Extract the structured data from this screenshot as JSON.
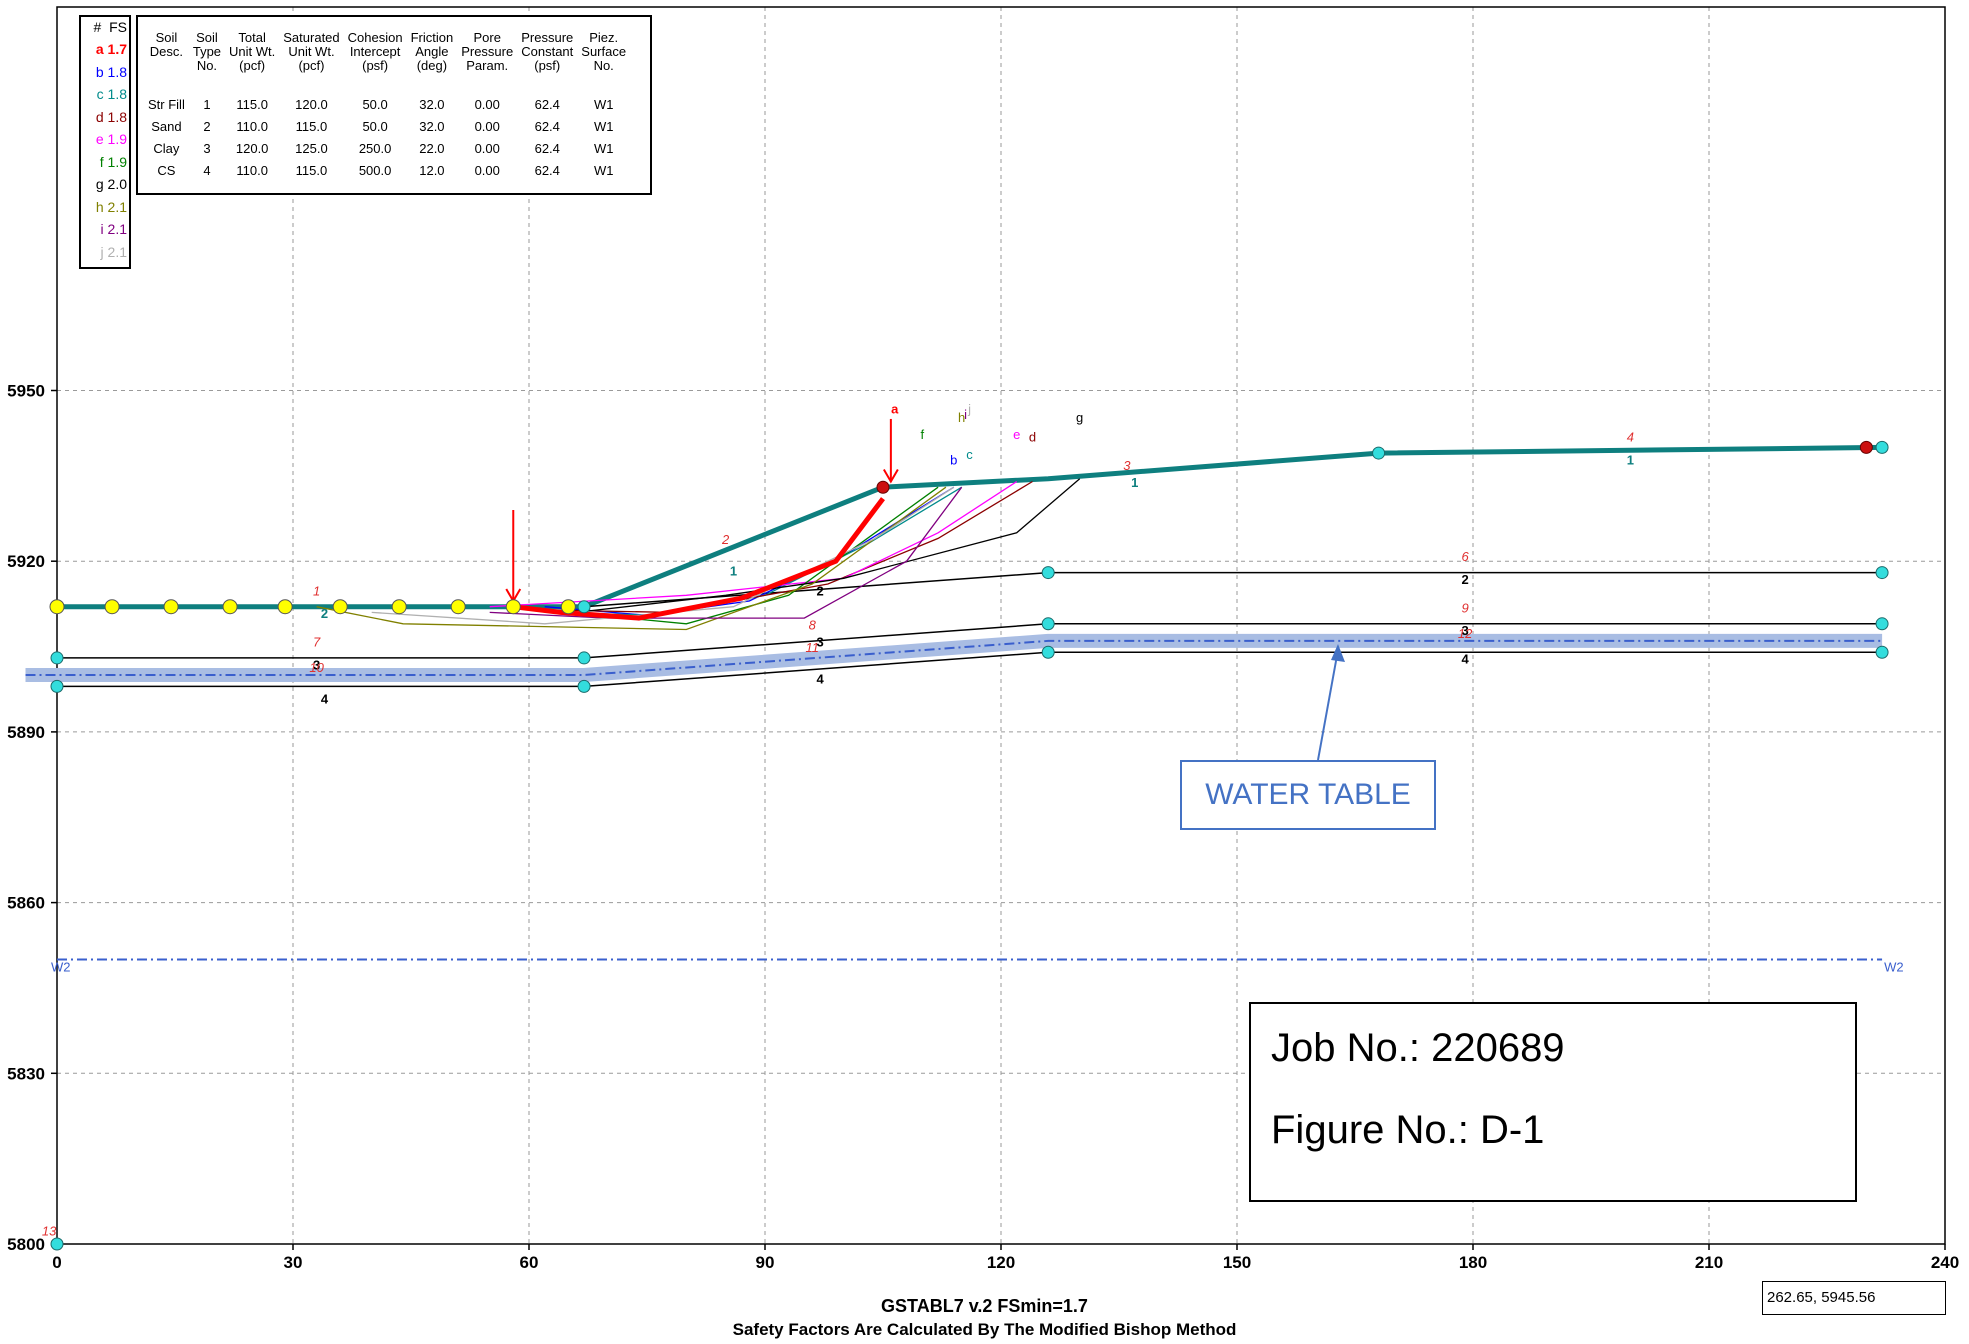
{
  "chart_data": {
    "type": "line",
    "title": "GSTABL7 v.2  FSmin=1.7",
    "subtitle": "Safety Factors Are Calculated By The Modified Bishop Method",
    "xlim": [
      0,
      240
    ],
    "ylim": [
      5800,
      5955
    ],
    "x_ticks": [
      "0",
      "30",
      "60",
      "90",
      "120",
      "150",
      "180",
      "210",
      "240"
    ],
    "y_ticks": [
      "5800",
      "5830",
      "5860",
      "5890",
      "5920",
      "5950"
    ],
    "grid": true,
    "boundaries": [
      {
        "name": "ground-surface",
        "color": "#0e7f7f",
        "points": [
          [
            0,
            5912
          ],
          [
            67,
            5912
          ],
          [
            105,
            5933
          ],
          [
            126,
            5934.5
          ],
          [
            168,
            5939
          ],
          [
            232,
            5940
          ]
        ]
      },
      {
        "name": "boundary-2",
        "color": "#000000",
        "points": [
          [
            67,
            5912
          ],
          [
            126,
            5918
          ],
          [
            232,
            5918
          ]
        ]
      },
      {
        "name": "boundary-3",
        "color": "#000000",
        "points": [
          [
            0,
            5903
          ],
          [
            67,
            5903
          ],
          [
            126,
            5909
          ],
          [
            232,
            5909
          ]
        ]
      },
      {
        "name": "boundary-4",
        "color": "#000000",
        "points": [
          [
            0,
            5898
          ],
          [
            67,
            5898
          ],
          [
            126,
            5904
          ],
          [
            232,
            5904
          ]
        ]
      }
    ],
    "water_table": {
      "color": "#3a5fcd",
      "points": [
        [
          -4,
          5900
        ],
        [
          67,
          5900
        ],
        [
          126,
          5906
        ],
        [
          232,
          5906
        ]
      ]
    },
    "piezometric_line_w2": {
      "y": 5850,
      "x": [
        0,
        232
      ],
      "label_start": "W2",
      "label_end": "W2"
    },
    "critical_surface": {
      "name": "a",
      "fs": 1.7,
      "color": "#ff0000",
      "points": [
        [
          58,
          5912
        ],
        [
          64,
          5911
        ],
        [
          74,
          5910
        ],
        [
          87,
          5913.5
        ],
        [
          99,
          5920
        ],
        [
          105,
          5931
        ]
      ]
    },
    "trial_surfaces": [
      {
        "name": "b",
        "color": "#0000ff",
        "points": [
          [
            62,
            5912
          ],
          [
            75,
            5910.5
          ],
          [
            88,
            5913
          ],
          [
            100,
            5921
          ],
          [
            114,
            5933
          ]
        ]
      },
      {
        "name": "c",
        "color": "#008b8b",
        "points": [
          [
            63,
            5911
          ],
          [
            76,
            5910.5
          ],
          [
            90,
            5914
          ],
          [
            103,
            5923
          ],
          [
            115,
            5933
          ]
        ]
      },
      {
        "name": "d",
        "color": "#8b0000",
        "points": [
          [
            60,
            5911.5
          ],
          [
            78,
            5911
          ],
          [
            98,
            5916
          ],
          [
            112,
            5924
          ],
          [
            124,
            5934
          ]
        ]
      },
      {
        "name": "e",
        "color": "#ff00ff",
        "points": [
          [
            55,
            5912
          ],
          [
            80,
            5914
          ],
          [
            100,
            5917
          ],
          [
            112,
            5925
          ],
          [
            122,
            5934
          ]
        ]
      },
      {
        "name": "f",
        "color": "#008000",
        "points": [
          [
            65,
            5911
          ],
          [
            80,
            5909
          ],
          [
            93,
            5914
          ],
          [
            104,
            5925
          ],
          [
            112,
            5933
          ]
        ]
      },
      {
        "name": "g",
        "color": "#000000",
        "points": [
          [
            66,
            5911
          ],
          [
            85,
            5914
          ],
          [
            100,
            5917
          ],
          [
            122,
            5925
          ],
          [
            130,
            5934.5
          ]
        ]
      },
      {
        "name": "h",
        "color": "#808000",
        "points": [
          [
            33,
            5912
          ],
          [
            44,
            5909
          ],
          [
            80,
            5908
          ],
          [
            96,
            5916
          ],
          [
            113,
            5933
          ]
        ]
      },
      {
        "name": "i",
        "color": "#800080",
        "points": [
          [
            55,
            5911
          ],
          [
            70,
            5910
          ],
          [
            95,
            5910
          ],
          [
            108,
            5920
          ],
          [
            115,
            5933
          ]
        ]
      },
      {
        "name": "j",
        "color": "#b0b0b0",
        "points": [
          [
            40,
            5911
          ],
          [
            62,
            5909
          ],
          [
            86,
            5912
          ],
          [
            104,
            5924
          ],
          [
            114,
            5933
          ]
        ]
      }
    ],
    "yellow_markers_x": [
      0,
      7,
      14.5,
      22,
      29,
      36,
      43.5,
      51,
      58,
      65
    ],
    "cyan_markers": [
      [
        67,
        5912
      ],
      [
        0,
        5903
      ],
      [
        67,
        5903
      ],
      [
        0,
        5898
      ],
      [
        67,
        5898
      ],
      [
        126,
        5918
      ],
      [
        126,
        5909
      ],
      [
        126,
        5904
      ],
      [
        168,
        5939
      ],
      [
        232,
        5940
      ],
      [
        232,
        5918
      ],
      [
        232,
        5909
      ],
      [
        232,
        5904
      ],
      [
        0,
        5800
      ]
    ],
    "red_markers": [
      [
        105,
        5933
      ],
      [
        230,
        5940
      ]
    ],
    "search_arrows_x": [
      58,
      106
    ],
    "soil_region_labels": [
      {
        "x": 86,
        "y": 5917.5,
        "text": "1",
        "color": "#0e7f7f"
      },
      {
        "x": 34,
        "y": 5910,
        "text": "2",
        "color": "#0e7f7f"
      },
      {
        "x": 137,
        "y": 5933,
        "text": "1",
        "color": "#0e7f7f"
      },
      {
        "x": 200,
        "y": 5937,
        "text": "1",
        "color": "#0e7f7f"
      },
      {
        "x": 97,
        "y": 5914,
        "text": "2",
        "color": "#000"
      },
      {
        "x": 179,
        "y": 5916,
        "text": "2",
        "color": "#000"
      },
      {
        "x": 33,
        "y": 5901,
        "text": "3",
        "color": "#000"
      },
      {
        "x": 97,
        "y": 5905,
        "text": "3",
        "color": "#000"
      },
      {
        "x": 179,
        "y": 5907,
        "text": "3",
        "color": "#000"
      },
      {
        "x": 34,
        "y": 5895,
        "text": "4",
        "color": "#000"
      },
      {
        "x": 97,
        "y": 5898.5,
        "text": "4",
        "color": "#000"
      },
      {
        "x": 179,
        "y": 5902,
        "text": "4",
        "color": "#000"
      }
    ],
    "boundary_numbers": [
      {
        "x": 33,
        "y": 5914,
        "text": "1"
      },
      {
        "x": 85,
        "y": 5923,
        "text": "2"
      },
      {
        "x": 136,
        "y": 5936,
        "text": "3"
      },
      {
        "x": 200,
        "y": 5941,
        "text": "4"
      },
      {
        "x": 33,
        "y": 5905,
        "text": "7"
      },
      {
        "x": 33,
        "y": 5900.5,
        "text": "10"
      },
      {
        "x": 96,
        "y": 5908,
        "text": "8"
      },
      {
        "x": 96,
        "y": 5904,
        "text": "11"
      },
      {
        "x": 179,
        "y": 5920,
        "text": "6"
      },
      {
        "x": 179,
        "y": 5911,
        "text": "9"
      },
      {
        "x": 179,
        "y": 5906.5,
        "text": "12"
      },
      {
        "x": -1,
        "y": 5801.5,
        "text": "13"
      }
    ],
    "surface_letter_labels": [
      {
        "text": "a",
        "x": 106.5,
        "y": 5946,
        "color": "#ff0000"
      },
      {
        "text": "b",
        "x": 114,
        "y": 5937,
        "color": "#0000ff"
      },
      {
        "text": "c",
        "x": 116,
        "y": 5938,
        "color": "#008b8b"
      },
      {
        "text": "d",
        "x": 124,
        "y": 5941,
        "color": "#8b0000"
      },
      {
        "text": "e",
        "x": 122,
        "y": 5941.5,
        "color": "#ff00ff"
      },
      {
        "text": "f",
        "x": 110,
        "y": 5941.5,
        "color": "#008000"
      },
      {
        "text": "g",
        "x": 130,
        "y": 5944.5,
        "color": "#000000"
      },
      {
        "text": "h",
        "x": 115,
        "y": 5944.5,
        "color": "#808000"
      },
      {
        "text": "i",
        "x": 115.5,
        "y": 5945,
        "color": "#800080"
      },
      {
        "text": "j",
        "x": 116,
        "y": 5946,
        "color": "#b0b0b0"
      }
    ]
  },
  "legend": {
    "header": "#  FS",
    "items": [
      {
        "letter": "a",
        "fs": "1.7",
        "color": "#ff0000"
      },
      {
        "letter": "b",
        "fs": "1.8",
        "color": "#0000ff"
      },
      {
        "letter": "c",
        "fs": "1.8",
        "color": "#008b8b"
      },
      {
        "letter": "d",
        "fs": "1.8",
        "color": "#8b0000"
      },
      {
        "letter": "e",
        "fs": "1.9",
        "color": "#ff00ff"
      },
      {
        "letter": "f",
        "fs": "1.9",
        "color": "#008000"
      },
      {
        "letter": "g",
        "fs": "2.0",
        "color": "#000000"
      },
      {
        "letter": "h",
        "fs": "2.1",
        "color": "#808000"
      },
      {
        "letter": "i",
        "fs": "2.1",
        "color": "#800080"
      },
      {
        "letter": "j",
        "fs": "2.1",
        "color": "#b0b0b0"
      }
    ]
  },
  "soil_table": {
    "headers": [
      [
        "Soil",
        "Desc."
      ],
      [
        "Soil",
        "Type",
        "No."
      ],
      [
        "Total",
        "Unit Wt.",
        "(pcf)"
      ],
      [
        "Saturated",
        "Unit Wt.",
        "(pcf)"
      ],
      [
        "Cohesion",
        "Intercept",
        "(psf)"
      ],
      [
        "Friction",
        "Angle",
        "(deg)"
      ],
      [
        "Pore",
        "Pressure",
        "Param."
      ],
      [
        "Pressure",
        "Constant",
        "(psf)"
      ],
      [
        "Piez.",
        "Surface",
        "No."
      ]
    ],
    "rows": [
      [
        "Str Fill",
        "1",
        "115.0",
        "120.0",
        "50.0",
        "32.0",
        "0.00",
        "62.4",
        "W1"
      ],
      [
        "Sand",
        "2",
        "110.0",
        "115.0",
        "50.0",
        "32.0",
        "0.00",
        "62.4",
        "W1"
      ],
      [
        "Clay",
        "3",
        "120.0",
        "125.0",
        "250.0",
        "22.0",
        "0.00",
        "62.4",
        "W1"
      ],
      [
        "CS",
        "4",
        "110.0",
        "115.0",
        "500.0",
        "12.0",
        "0.00",
        "62.4",
        "W1"
      ]
    ]
  },
  "water_table_label": "WATER TABLE",
  "job_box": {
    "job_line": "Job No.: 220689",
    "figure_line": "Figure No.:  D-1"
  },
  "cursor_readout": "262.65, 5945.56",
  "colors": {
    "ground": "#0e7f7f",
    "critical": "#ff0000",
    "water": "#3a5fcd",
    "water_band": "#a9bde3",
    "grid": "#9a9a9a",
    "marker_yellow": "#ffff00",
    "marker_cyan": "#33dddd"
  }
}
